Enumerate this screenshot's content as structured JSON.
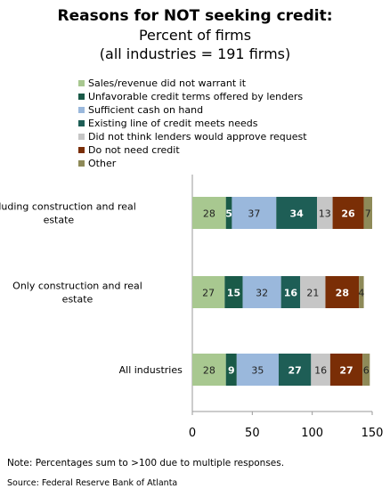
{
  "title": "Reasons for NOT seeking credit:",
  "subtitle_lines": [
    "Percent of firms",
    "(all industries = 191 firms)"
  ],
  "note": "Note: Percentages sum to >100 due to multiple responses.",
  "source": "Source: Federal Reserve Bank of Atlanta",
  "chart_data": {
    "type": "bar",
    "orientation": "horizontal",
    "stacked": true,
    "categories": [
      [
        "Excluding construction  and real",
        "estate"
      ],
      [
        "Only construction  and real",
        "estate"
      ],
      [
        "All industries"
      ]
    ],
    "xlim": [
      0,
      150
    ],
    "xticks": [
      0,
      50,
      100,
      150
    ],
    "legend_position": "top",
    "series": [
      {
        "name": "Sales/revenue did not warrant it",
        "color": "#a8c890",
        "bold_labels": false,
        "values": [
          28,
          27,
          28
        ]
      },
      {
        "name": "Unfavorable credit terms offered by lenders",
        "color": "#1a5a48",
        "bold_labels": true,
        "values": [
          5,
          15,
          9
        ]
      },
      {
        "name": "Sufficient  cash on hand",
        "color": "#9ab8dc",
        "bold_labels": false,
        "values": [
          37,
          32,
          35
        ]
      },
      {
        "name": "Existing line of credit meets needs",
        "color": "#1e5e56",
        "bold_labels": true,
        "values": [
          34,
          16,
          27
        ]
      },
      {
        "name": "Did not think  lenders would approve request",
        "color": "#c6c6c6",
        "bold_labels": false,
        "values": [
          13,
          21,
          16
        ]
      },
      {
        "name": "Do not need credit",
        "color": "#7a2e06",
        "bold_labels": true,
        "values": [
          26,
          28,
          27
        ]
      },
      {
        "name": "Other",
        "color": "#8e8a58",
        "bold_labels": false,
        "values": [
          7,
          4,
          6
        ]
      }
    ]
  }
}
